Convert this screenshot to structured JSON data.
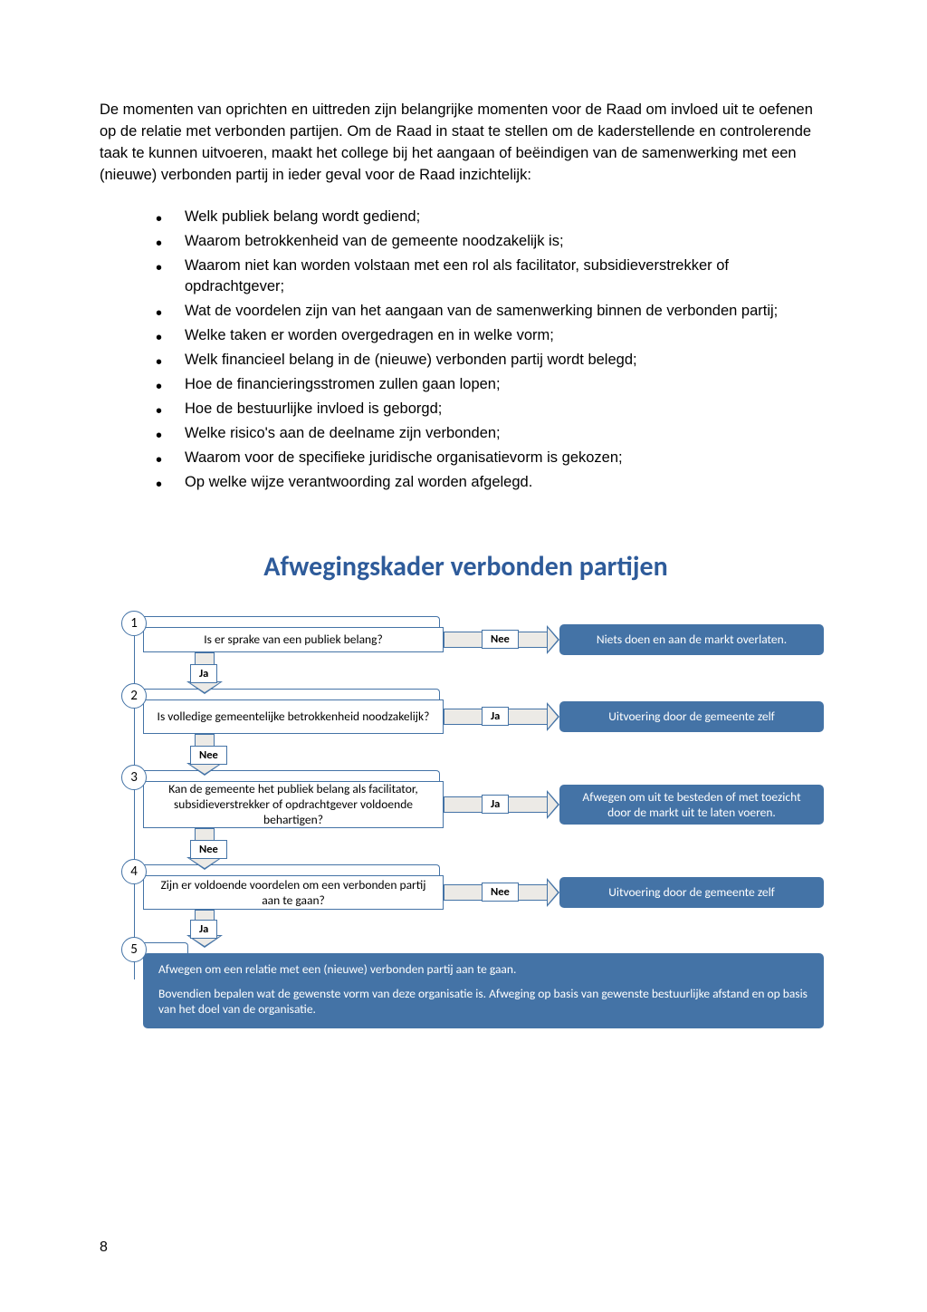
{
  "colors": {
    "text": "#000000",
    "title": "#2e5b9a",
    "border": "#4473a6",
    "outcome_bg": "#4473a6",
    "arrow_fill": "#eceae6"
  },
  "intro": "De momenten van oprichten en uittreden zijn belangrijke momenten voor de Raad om invloed uit te oefenen op de relatie met verbonden partijen. Om de Raad in staat te stellen om de kaderstellende en controlerende taak te kunnen uitvoeren, maakt het college bij het aangaan of beëindigen van de samenwerking met een (nieuwe) verbonden partij in ieder geval voor de Raad inzichtelijk:",
  "bullets": [
    "Welk publiek belang wordt gediend;",
    "Waarom betrokkenheid van de gemeente noodzakelijk is;",
    "Waarom niet kan worden volstaan met een rol als facilitator, subsidieverstrekker of opdrachtgever;",
    "Wat de voordelen zijn van het aangaan van de samenwerking binnen de verbonden partij;",
    "Welke taken er worden overgedragen en in welke vorm;",
    "Welk financieel belang in de (nieuwe) verbonden partij wordt belegd;",
    "Hoe de financieringsstromen zullen gaan lopen;",
    "Hoe de bestuurlijke invloed is geborgd;",
    "Welke risico's aan de deelname zijn verbonden;",
    "Waarom voor de specifieke juridische organisatievorm is gekozen;",
    "Op welke wijze verantwoording zal worden afgelegd."
  ],
  "chart": {
    "title": "Afwegingskader verbonden partijen",
    "ja": "Ja",
    "nee": "Nee",
    "steps": [
      {
        "num": "1",
        "q": "Is er sprake van een publiek belang?",
        "branch": "Nee",
        "down": "Ja",
        "out": "Niets doen en aan de markt overlaten."
      },
      {
        "num": "2",
        "q": "Is volledige gemeentelijke betrokkenheid noodzakelijk?",
        "branch": "Ja",
        "down": "Nee",
        "out": "Uitvoering door de gemeente zelf"
      },
      {
        "num": "3",
        "q": "Kan de gemeente het publiek belang als facilitator, subsidieverstrekker of opdrachtgever voldoende behartigen?",
        "branch": "Ja",
        "down": "Nee",
        "out": "Afwegen om uit te besteden of met toezicht door de markt uit te laten voeren."
      },
      {
        "num": "4",
        "q": "Zijn er voldoende voordelen om een verbonden partij aan te gaan?",
        "branch": "Nee",
        "down": "Ja",
        "out": "Uitvoering door de gemeente zelf"
      }
    ],
    "final": {
      "num": "5",
      "line1": "Afwegen om een relatie met een (nieuwe) verbonden partij aan te gaan.",
      "line2": "Bovendien bepalen wat de gewenste vorm van deze organisatie is. Afweging op basis van gewenste bestuurlijke afstand en op basis van het doel van de organisatie."
    }
  },
  "page_number": "8"
}
